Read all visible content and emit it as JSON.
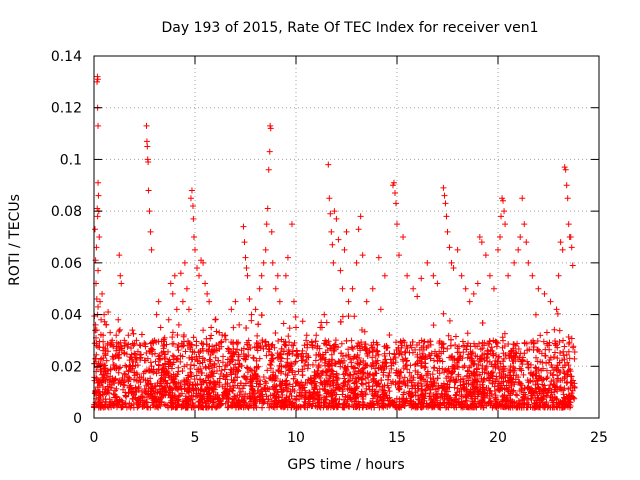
{
  "chart_data": {
    "type": "scatter",
    "title": "Day 193 of 2015, Rate Of TEC Index for receiver ven1",
    "xlabel": "GPS time / hours",
    "ylabel": "ROTI / TECUs",
    "xlim": [
      0,
      25
    ],
    "ylim": [
      0,
      0.14
    ],
    "x_ticks": [
      0,
      5,
      10,
      15,
      20,
      25
    ],
    "y_ticks": [
      0,
      0.02,
      0.04,
      0.06,
      0.08,
      0.1,
      0.12,
      0.14
    ],
    "grid": true,
    "marker": "+",
    "color": "#ff0000",
    "series": [
      {
        "name": "ROTI",
        "points": [
          [
            0.05,
            0.073
          ],
          [
            0.08,
            0.061
          ],
          [
            0.1,
            0.052
          ],
          [
            0.12,
            0.066
          ],
          [
            0.14,
            0.046
          ],
          [
            0.16,
            0.081
          ],
          [
            0.18,
            0.078
          ],
          [
            0.2,
            0.057
          ],
          [
            0.08,
            0.036
          ],
          [
            0.1,
            0.031
          ],
          [
            0.12,
            0.028
          ],
          [
            0.14,
            0.034
          ],
          [
            0.18,
            0.04
          ],
          [
            0.2,
            0.043
          ],
          [
            0.15,
            0.13
          ],
          [
            0.17,
            0.132
          ],
          [
            0.19,
            0.131
          ],
          [
            0.18,
            0.12
          ],
          [
            0.2,
            0.113
          ],
          [
            0.2,
            0.091
          ],
          [
            0.22,
            0.086
          ],
          [
            0.24,
            0.08
          ],
          [
            0.26,
            0.07
          ],
          [
            0.3,
            0.045
          ],
          [
            0.35,
            0.038
          ],
          [
            0.4,
            0.048
          ],
          [
            0.45,
            0.032
          ],
          [
            0.5,
            0.04
          ],
          [
            0.6,
            0.036
          ],
          [
            0.7,
            0.041
          ],
          [
            0.8,
            0.033
          ],
          [
            0.9,
            0.03
          ],
          [
            1.1,
            0.032
          ],
          [
            1.2,
            0.038
          ],
          [
            1.25,
            0.063
          ],
          [
            1.3,
            0.055
          ],
          [
            1.35,
            0.052
          ],
          [
            1.5,
            0.03
          ],
          [
            1.7,
            0.032
          ],
          [
            1.9,
            0.034
          ],
          [
            2.1,
            0.03
          ],
          [
            2.3,
            0.028
          ],
          [
            2.6,
            0.113
          ],
          [
            2.62,
            0.107
          ],
          [
            2.64,
            0.105
          ],
          [
            2.66,
            0.1
          ],
          [
            2.68,
            0.099
          ],
          [
            2.7,
            0.088
          ],
          [
            2.75,
            0.08
          ],
          [
            2.8,
            0.072
          ],
          [
            2.85,
            0.065
          ],
          [
            3,
            0.03
          ],
          [
            3.1,
            0.04
          ],
          [
            3.2,
            0.045
          ],
          [
            3.3,
            0.035
          ],
          [
            3.5,
            0.031
          ],
          [
            3.7,
            0.038
          ],
          [
            3.8,
            0.052
          ],
          [
            3.9,
            0.048
          ],
          [
            4,
            0.055
          ],
          [
            4.1,
            0.042
          ],
          [
            4.2,
            0.036
          ],
          [
            4.3,
            0.056
          ],
          [
            4.4,
            0.045
          ],
          [
            4.5,
            0.06
          ],
          [
            4.6,
            0.05
          ],
          [
            4.7,
            0.042
          ],
          [
            4.8,
            0.085
          ],
          [
            4.85,
            0.088
          ],
          [
            4.9,
            0.082
          ],
          [
            4.92,
            0.077
          ],
          [
            4.95,
            0.07
          ],
          [
            5.0,
            0.065
          ],
          [
            5.1,
            0.058
          ],
          [
            5.2,
            0.055
          ],
          [
            5.3,
            0.061
          ],
          [
            5.4,
            0.06
          ],
          [
            5.5,
            0.052
          ],
          [
            5.6,
            0.048
          ],
          [
            5.7,
            0.045
          ],
          [
            5.8,
            0.035
          ],
          [
            6.0,
            0.038
          ],
          [
            6.2,
            0.033
          ],
          [
            6.5,
            0.032
          ],
          [
            6.8,
            0.042
          ],
          [
            7.0,
            0.045
          ],
          [
            7.4,
            0.074
          ],
          [
            7.45,
            0.068
          ],
          [
            7.5,
            0.062
          ],
          [
            7.55,
            0.058
          ],
          [
            7.6,
            0.055
          ],
          [
            7.7,
            0.046
          ],
          [
            7.8,
            0.04
          ],
          [
            8.0,
            0.042
          ],
          [
            8.2,
            0.05
          ],
          [
            8.3,
            0.055
          ],
          [
            8.4,
            0.06
          ],
          [
            8.5,
            0.065
          ],
          [
            8.55,
            0.075
          ],
          [
            8.6,
            0.081
          ],
          [
            8.65,
            0.096
          ],
          [
            8.7,
            0.103
          ],
          [
            8.72,
            0.113
          ],
          [
            8.75,
            0.112
          ],
          [
            8.8,
            0.072
          ],
          [
            8.85,
            0.06
          ],
          [
            9.0,
            0.05
          ],
          [
            9.1,
            0.055
          ],
          [
            9.2,
            0.045
          ],
          [
            9.5,
            0.055
          ],
          [
            9.6,
            0.062
          ],
          [
            9.8,
            0.075
          ],
          [
            9.9,
            0.045
          ],
          [
            10.0,
            0.035
          ],
          [
            10.5,
            0.03
          ],
          [
            10.8,
            0.028
          ],
          [
            11.0,
            0.032
          ],
          [
            11.2,
            0.035
          ],
          [
            11.4,
            0.04
          ],
          [
            11.6,
            0.098
          ],
          [
            11.65,
            0.085
          ],
          [
            11.7,
            0.079
          ],
          [
            11.75,
            0.072
          ],
          [
            11.8,
            0.067
          ],
          [
            11.85,
            0.06
          ],
          [
            11.9,
            0.08
          ],
          [
            12.0,
            0.077
          ],
          [
            12.1,
            0.069
          ],
          [
            12.2,
            0.057
          ],
          [
            12.3,
            0.05
          ],
          [
            12.4,
            0.065
          ],
          [
            12.5,
            0.072
          ],
          [
            12.6,
            0.045
          ],
          [
            12.8,
            0.05
          ],
          [
            13.0,
            0.06
          ],
          [
            13.1,
            0.073
          ],
          [
            13.2,
            0.078
          ],
          [
            13.3,
            0.063
          ],
          [
            13.5,
            0.045
          ],
          [
            13.8,
            0.05
          ],
          [
            14.1,
            0.062
          ],
          [
            14.2,
            0.042
          ],
          [
            14.4,
            0.055
          ],
          [
            14.8,
            0.09
          ],
          [
            14.85,
            0.091
          ],
          [
            14.9,
            0.087
          ],
          [
            14.95,
            0.083
          ],
          [
            15.0,
            0.075
          ],
          [
            15.1,
            0.063
          ],
          [
            15.3,
            0.07
          ],
          [
            15.5,
            0.055
          ],
          [
            15.8,
            0.05
          ],
          [
            16.0,
            0.047
          ],
          [
            16.2,
            0.054
          ],
          [
            16.5,
            0.06
          ],
          [
            16.8,
            0.055
          ],
          [
            17.0,
            0.052
          ],
          [
            17.3,
            0.089
          ],
          [
            17.35,
            0.086
          ],
          [
            17.4,
            0.083
          ],
          [
            17.45,
            0.078
          ],
          [
            17.5,
            0.072
          ],
          [
            17.6,
            0.066
          ],
          [
            17.7,
            0.06
          ],
          [
            17.8,
            0.058
          ],
          [
            18.0,
            0.065
          ],
          [
            18.2,
            0.055
          ],
          [
            18.4,
            0.05
          ],
          [
            18.6,
            0.045
          ],
          [
            18.8,
            0.048
          ],
          [
            19.0,
            0.052
          ],
          [
            19.1,
            0.07
          ],
          [
            19.2,
            0.068
          ],
          [
            19.4,
            0.063
          ],
          [
            19.6,
            0.055
          ],
          [
            19.8,
            0.05
          ],
          [
            20.0,
            0.065
          ],
          [
            20.1,
            0.07
          ],
          [
            20.15,
            0.078
          ],
          [
            20.2,
            0.085
          ],
          [
            20.25,
            0.084
          ],
          [
            20.3,
            0.08
          ],
          [
            20.35,
            0.075
          ],
          [
            20.5,
            0.055
          ],
          [
            20.8,
            0.06
          ],
          [
            21.0,
            0.065
          ],
          [
            21.1,
            0.07
          ],
          [
            21.2,
            0.085
          ],
          [
            21.3,
            0.075
          ],
          [
            21.4,
            0.068
          ],
          [
            21.5,
            0.06
          ],
          [
            21.7,
            0.055
          ],
          [
            22.0,
            0.05
          ],
          [
            22.3,
            0.048
          ],
          [
            22.6,
            0.045
          ],
          [
            22.9,
            0.042
          ],
          [
            23.3,
            0.097
          ],
          [
            23.35,
            0.096
          ],
          [
            23.4,
            0.09
          ],
          [
            23.45,
            0.085
          ],
          [
            23.5,
            0.075
          ],
          [
            23.55,
            0.07
          ],
          [
            23.6,
            0.07
          ],
          [
            23.65,
            0.066
          ],
          [
            23.7,
            0.059
          ],
          [
            23.2,
            0.065
          ],
          [
            23.1,
            0.068
          ],
          [
            23.0,
            0.055
          ]
        ]
      }
    ]
  }
}
